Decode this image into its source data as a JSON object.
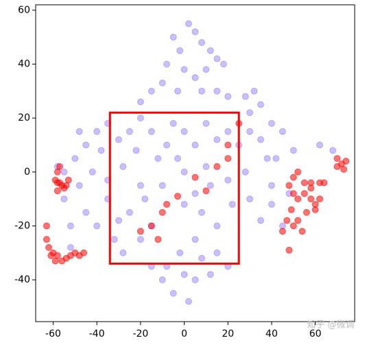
{
  "chart_data": {
    "type": "scatter",
    "xlim": [
      -68,
      78
    ],
    "ylim": [
      -55.5,
      62
    ],
    "xticks": [
      -60,
      -40,
      -20,
      0,
      20,
      40,
      60
    ],
    "yticks": [
      -40,
      -20,
      0,
      20,
      40,
      60
    ],
    "highlight_box": {
      "x": [
        -34,
        25
      ],
      "y": [
        -34,
        22
      ],
      "color": "#ff0000"
    },
    "watermark": "知乎 @微调",
    "series": [
      {
        "color": "#3300ff",
        "opacity": 0.25,
        "x": [
          -5,
          2,
          5,
          -2,
          8,
          12,
          15,
          -8,
          0,
          5,
          10,
          18,
          -10,
          -3,
          8,
          15,
          20,
          -15,
          -20,
          28,
          32,
          30,
          35,
          -40,
          -35,
          -45,
          -50,
          -55,
          -48,
          -42,
          -38,
          -30,
          -25,
          -22,
          -28,
          -35,
          -45,
          -52,
          -40,
          -35,
          -30,
          -25,
          -20,
          -15,
          -18,
          -10,
          -12,
          -15,
          -20,
          -5,
          -8,
          0,
          5,
          10,
          15,
          20,
          25,
          30,
          35,
          40,
          45,
          50,
          38,
          28,
          20,
          12,
          5,
          0,
          8,
          15,
          22,
          30,
          35,
          40,
          45,
          48,
          5,
          -2,
          -8,
          0,
          8,
          15,
          -15,
          -5,
          2,
          -10,
          5,
          12,
          20,
          0,
          -3,
          10,
          -20,
          -28,
          -32,
          -55,
          -58,
          62,
          68,
          40,
          42,
          -48,
          -52
        ],
        "y": [
          50,
          55,
          52,
          45,
          48,
          45,
          42,
          40,
          38,
          35,
          38,
          40,
          33,
          30,
          30,
          30,
          28,
          30,
          26,
          28,
          30,
          22,
          25,
          15,
          18,
          10,
          5,
          0,
          -5,
          0,
          8,
          12,
          15,
          8,
          2,
          -3,
          -15,
          -20,
          -20,
          -10,
          -18,
          -15,
          -25,
          -20,
          -10,
          -5,
          5,
          15,
          20,
          18,
          10,
          15,
          10,
          18,
          12,
          15,
          10,
          15,
          12,
          18,
          15,
          8,
          5,
          0,
          -3,
          -5,
          -8,
          -12,
          -15,
          -20,
          -12,
          -10,
          -18,
          -12,
          -20,
          -8,
          -25,
          -30,
          -35,
          -38,
          -32,
          -30,
          -35,
          -45,
          -48,
          -40,
          -40,
          -38,
          -35,
          0,
          5,
          2,
          -5,
          -30,
          -25,
          -10,
          2,
          10,
          8,
          -5,
          5,
          15,
          -28
        ]
      },
      {
        "color": "#ff0000",
        "opacity": 0.55,
        "x": [
          -58,
          -58,
          -57,
          -56,
          -55,
          -53,
          -58,
          -59,
          -57,
          -54,
          -63,
          -63,
          -62,
          -60,
          -58,
          -56,
          -54,
          -52,
          -50,
          -48,
          -46,
          -61,
          -59,
          50,
          52,
          48,
          50,
          52,
          55,
          58,
          60,
          62,
          58,
          55,
          52,
          50,
          54,
          56,
          60,
          62,
          64,
          58,
          45,
          48,
          49,
          47,
          70,
          72,
          74,
          70,
          73,
          -3,
          5,
          10,
          15,
          20,
          -10,
          -15,
          -20,
          -12,
          -8,
          25,
          20
        ],
        "y": [
          -4,
          0,
          2,
          -5,
          -6,
          -3,
          -7,
          -3,
          -4,
          -5,
          -20,
          -25,
          -28,
          -30,
          -31,
          -33,
          -32,
          -31,
          -30,
          -31,
          -30,
          -31,
          -33,
          -2,
          0,
          -5,
          -8,
          -10,
          -8,
          -10,
          -12,
          -10,
          -6,
          -4,
          -18,
          -20,
          -22,
          -15,
          -14,
          -4,
          -4,
          -4,
          -22,
          -29,
          -14,
          -18,
          2,
          3,
          4,
          5,
          1,
          -9,
          -2,
          -7,
          2,
          5,
          -15,
          -20,
          -22,
          -25,
          -12,
          18,
          10
        ]
      }
    ]
  }
}
